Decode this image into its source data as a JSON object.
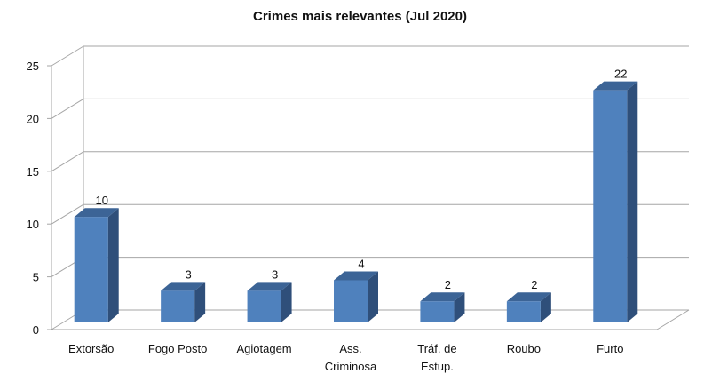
{
  "chart_data": {
    "type": "bar",
    "title": "Crimes mais relevantes (Jul 2020)",
    "categories": [
      "Extorsão",
      "Fogo Posto",
      "Agiotagem",
      "Ass. Criminosa",
      "Tráf. de Estup.",
      "Roubo",
      "Furto"
    ],
    "category_lines": [
      [
        "Extorsão"
      ],
      [
        "Fogo Posto"
      ],
      [
        "Agiotagem"
      ],
      [
        "Ass.",
        "Criminosa"
      ],
      [
        "Tráf. de",
        "Estup."
      ],
      [
        "Roubo"
      ],
      [
        "Furto"
      ]
    ],
    "values": [
      10,
      3,
      3,
      4,
      2,
      2,
      22
    ],
    "ylim": [
      0,
      25
    ],
    "yticks": [
      0,
      5,
      10,
      15,
      20,
      25
    ],
    "grid": true,
    "bar_3d": true,
    "colors": {
      "bar_front": "#4F81BD",
      "bar_side": "#2F4F7A",
      "bar_top": "#3C6496",
      "grid": "#A6A6A6",
      "text": "#111111"
    }
  }
}
